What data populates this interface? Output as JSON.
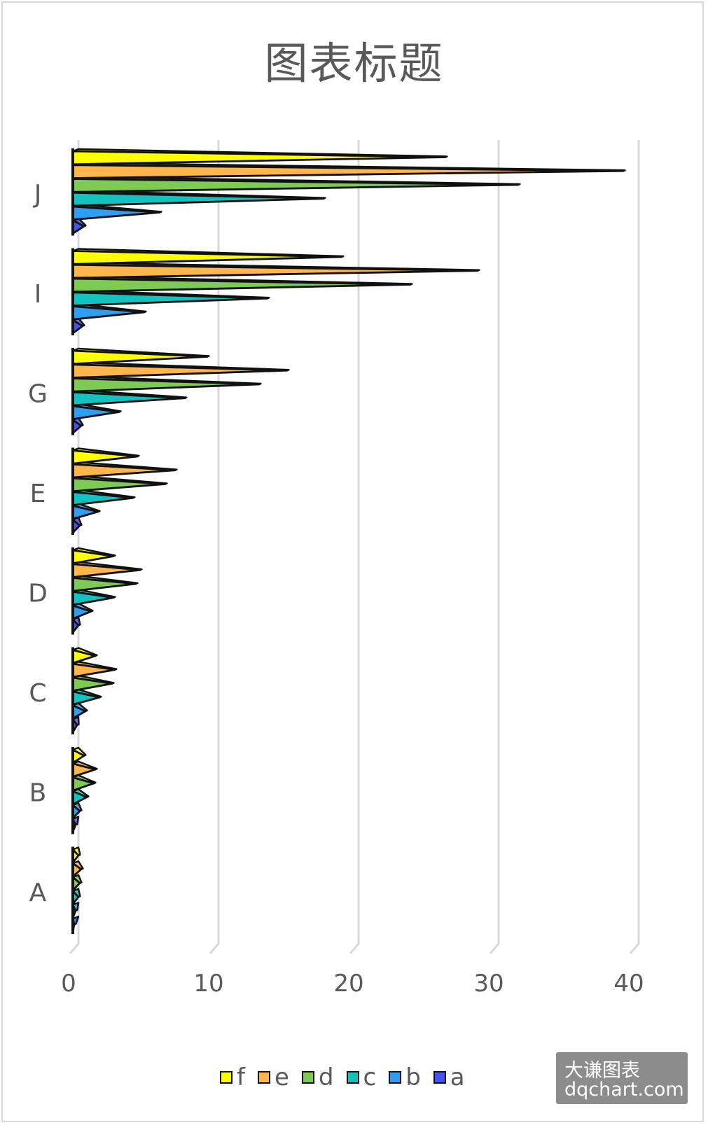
{
  "chart_data": {
    "type": "bar",
    "orientation": "horizontal",
    "title": "图表标题",
    "categories": [
      "A",
      "B",
      "C",
      "D",
      "E",
      "G",
      "I",
      "J"
    ],
    "series": [
      {
        "name": "f",
        "color": "#ffff00",
        "values": [
          0.4,
          0.8,
          1.6,
          2.9,
          4.6,
          9.6,
          19.2,
          26.6
        ]
      },
      {
        "name": "e",
        "color": "#ffb64c",
        "values": [
          0.6,
          1.6,
          3.0,
          4.8,
          7.3,
          15.3,
          28.9,
          39.3
        ]
      },
      {
        "name": "d",
        "color": "#7dcb54",
        "values": [
          0.5,
          1.5,
          2.8,
          4.5,
          6.6,
          13.3,
          24.1,
          31.8
        ]
      },
      {
        "name": "c",
        "color": "#14c3c0",
        "values": [
          0.4,
          1.0,
          1.9,
          2.9,
          4.3,
          8.0,
          13.9,
          17.9
        ]
      },
      {
        "name": "b",
        "color": "#2e9ef0",
        "values": [
          0.2,
          0.5,
          0.9,
          1.3,
          1.8,
          3.3,
          5.1,
          6.2
        ]
      },
      {
        "name": "a",
        "color": "#4653f2",
        "values": [
          0.1,
          0.2,
          0.3,
          0.4,
          0.5,
          0.6,
          0.7,
          0.8
        ]
      }
    ],
    "xlim": [
      0,
      40
    ],
    "xticks": [
      0,
      10,
      20,
      30,
      40
    ],
    "xtick_labels": [
      "0",
      "10",
      "20",
      "30",
      "40"
    ],
    "grid": true,
    "legend_position": "bottom"
  },
  "watermark": {
    "line1": "大谦图表",
    "line2": "dqchart.com"
  }
}
